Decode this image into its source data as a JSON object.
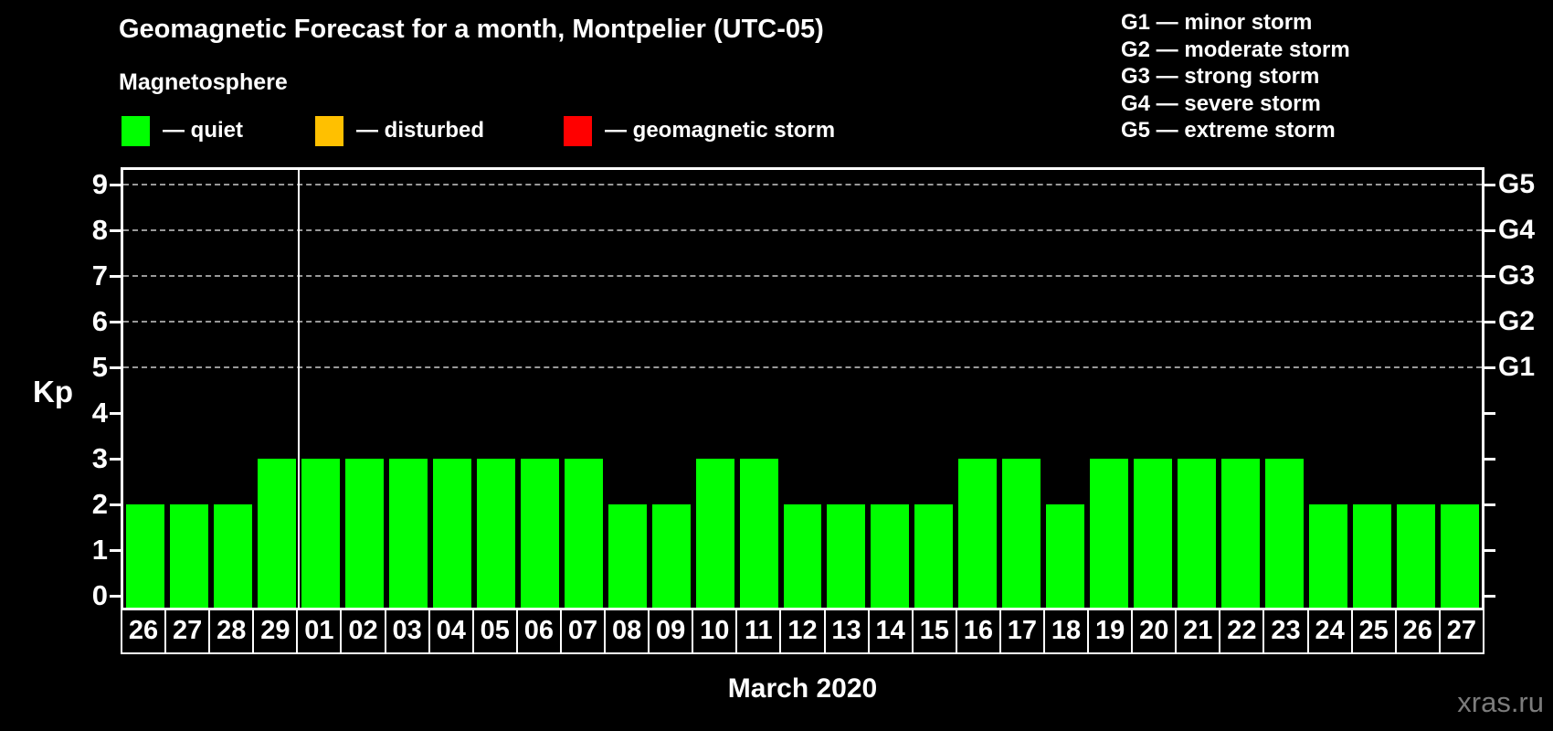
{
  "header": {
    "title": "Geomagnetic Forecast for a month, Montpelier (UTC-05)",
    "subtitle": "Magnetosphere"
  },
  "legend": {
    "items": [
      {
        "name": "quiet",
        "label": "— quiet",
        "color": "#00ff00"
      },
      {
        "name": "disturbed",
        "label": "— disturbed",
        "color": "#ffc000"
      },
      {
        "name": "storm",
        "label": "— geomagnetic storm",
        "color": "#ff0000"
      }
    ]
  },
  "g_scale_legend": {
    "items": [
      {
        "name": "g1",
        "label": "G1 — minor storm"
      },
      {
        "name": "g2",
        "label": "G2 — moderate storm"
      },
      {
        "name": "g3",
        "label": "G3 — strong storm"
      },
      {
        "name": "g4",
        "label": "G4 — severe storm"
      },
      {
        "name": "g5",
        "label": "G5 — extreme storm"
      }
    ]
  },
  "chart_data": {
    "type": "bar",
    "title": "Geomagnetic Forecast for a month, Montpelier (UTC-05)",
    "subtitle": "Magnetosphere",
    "xlabel": "March 2020",
    "ylabel": "Kp",
    "ylim": [
      -0.3,
      9.4
    ],
    "yticks": [
      0,
      1,
      2,
      3,
      4,
      5,
      6,
      7,
      8,
      9
    ],
    "grid": {
      "dashed_gridlines_at_kp": [
        5,
        6,
        7,
        8,
        9
      ],
      "color": "#999999"
    },
    "right_axis_labels": [
      {
        "kp": 5,
        "label": "G1"
      },
      {
        "kp": 6,
        "label": "G2"
      },
      {
        "kp": 7,
        "label": "G3"
      },
      {
        "kp": 8,
        "label": "G4"
      },
      {
        "kp": 9,
        "label": "G5"
      }
    ],
    "categories": [
      "26",
      "27",
      "28",
      "29",
      "01",
      "02",
      "03",
      "04",
      "05",
      "06",
      "07",
      "08",
      "09",
      "10",
      "11",
      "12",
      "13",
      "14",
      "15",
      "16",
      "17",
      "18",
      "19",
      "20",
      "21",
      "22",
      "23",
      "24",
      "25",
      "26",
      "27"
    ],
    "values": [
      2,
      2,
      2,
      3,
      3,
      3,
      3,
      3,
      3,
      3,
      3,
      2,
      2,
      3,
      3,
      2,
      2,
      2,
      2,
      3,
      3,
      2,
      3,
      3,
      3,
      3,
      3,
      2,
      2,
      2,
      2
    ],
    "bar_color": "#00ff00",
    "month_separator_after_index": 3
  },
  "footer": {
    "watermark": "xras.ru"
  }
}
